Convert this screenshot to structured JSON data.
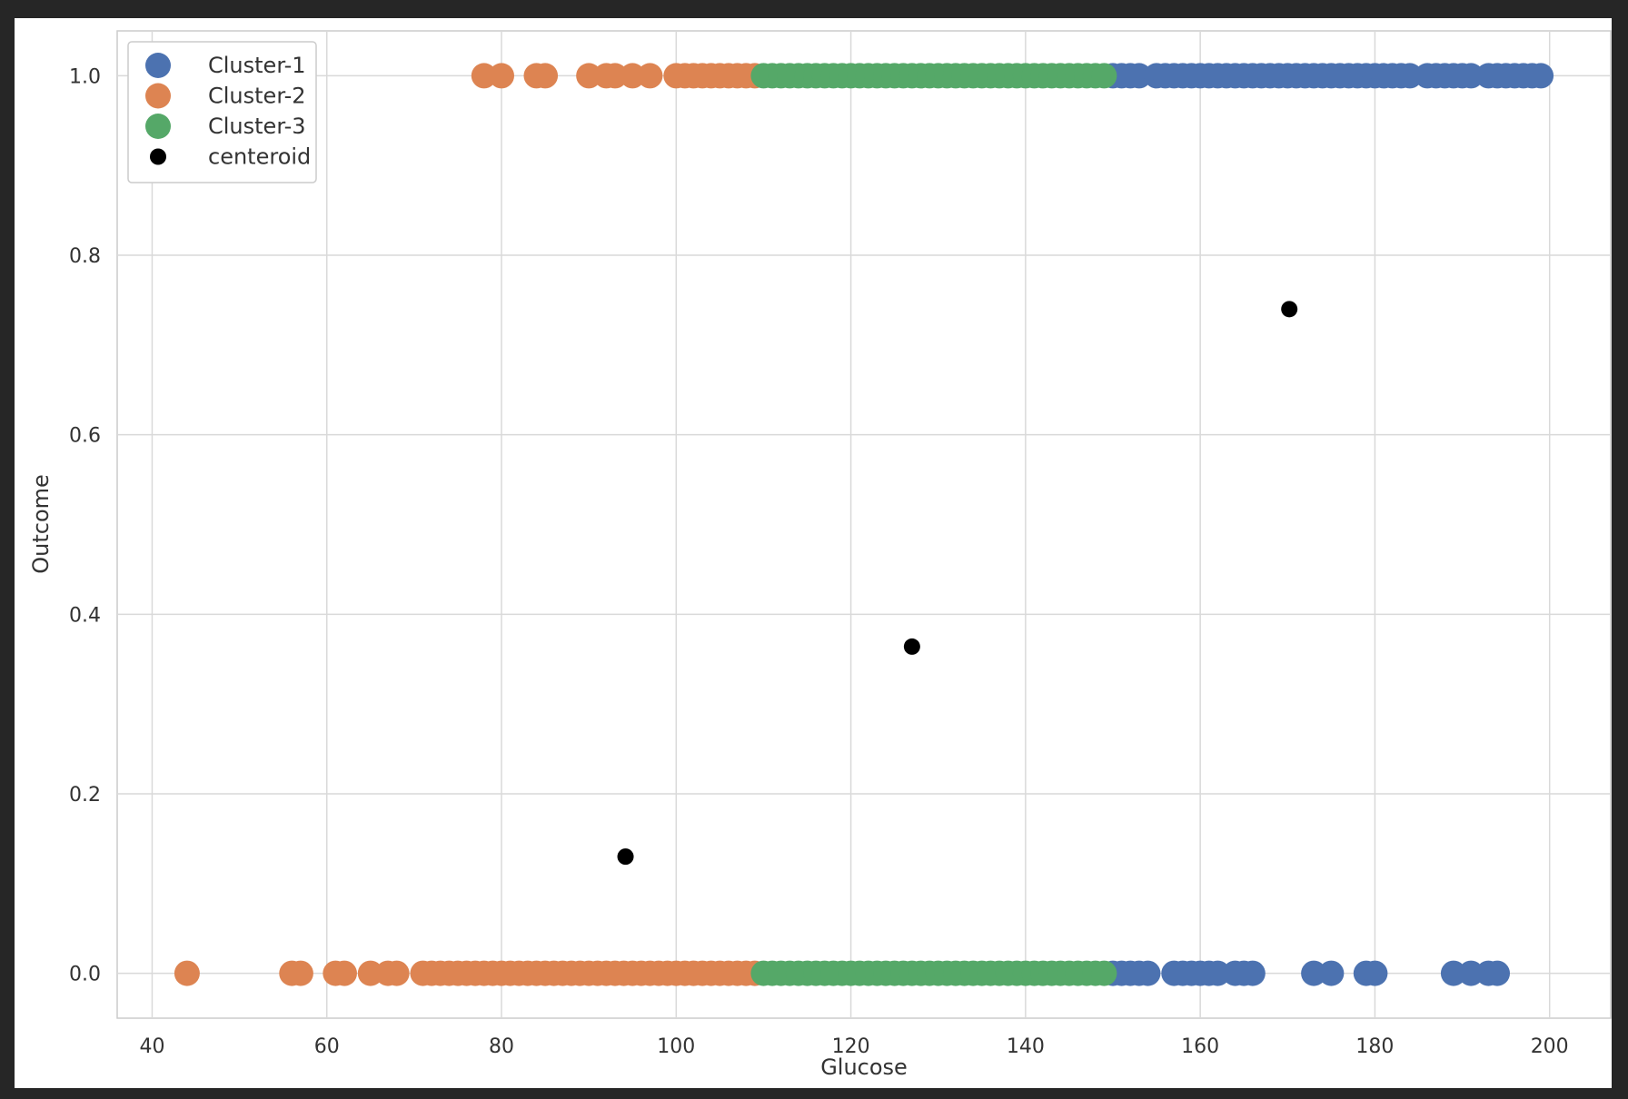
{
  "chart_data": {
    "type": "scatter",
    "title": "",
    "xlabel": "Glucose",
    "ylabel": "Outcome",
    "xlim": [
      36,
      207
    ],
    "ylim": [
      -0.05,
      1.05
    ],
    "xticks": [
      "40",
      "60",
      "80",
      "100",
      "120",
      "140",
      "160",
      "180",
      "200"
    ],
    "xtick_values": [
      40,
      60,
      80,
      100,
      120,
      140,
      160,
      180,
      200
    ],
    "yticks": [
      "0.0",
      "0.2",
      "0.4",
      "0.6",
      "0.8",
      "1.0"
    ],
    "ytick_values": [
      0.0,
      0.2,
      0.4,
      0.6,
      0.8,
      1.0
    ],
    "grid": true,
    "legend_position": "top-left",
    "series": [
      {
        "name": "Cluster-1",
        "color": "#4c72b0",
        "points": [
          [
            150,
            1
          ],
          [
            151,
            1
          ],
          [
            152,
            1
          ],
          [
            153,
            1
          ],
          [
            155,
            1
          ],
          [
            156,
            1
          ],
          [
            157,
            1
          ],
          [
            158,
            1
          ],
          [
            159,
            1
          ],
          [
            160,
            1
          ],
          [
            161,
            1
          ],
          [
            162,
            1
          ],
          [
            163,
            1
          ],
          [
            164,
            1
          ],
          [
            165,
            1
          ],
          [
            166,
            1
          ],
          [
            167,
            1
          ],
          [
            168,
            1
          ],
          [
            169,
            1
          ],
          [
            170,
            1
          ],
          [
            171,
            1
          ],
          [
            172,
            1
          ],
          [
            173,
            1
          ],
          [
            174,
            1
          ],
          [
            175,
            1
          ],
          [
            176,
            1
          ],
          [
            177,
            1
          ],
          [
            178,
            1
          ],
          [
            179,
            1
          ],
          [
            180,
            1
          ],
          [
            181,
            1
          ],
          [
            182,
            1
          ],
          [
            183,
            1
          ],
          [
            184,
            1
          ],
          [
            186,
            1
          ],
          [
            187,
            1
          ],
          [
            188,
            1
          ],
          [
            189,
            1
          ],
          [
            190,
            1
          ],
          [
            191,
            1
          ],
          [
            193,
            1
          ],
          [
            194,
            1
          ],
          [
            195,
            1
          ],
          [
            196,
            1
          ],
          [
            197,
            1
          ],
          [
            198,
            1
          ],
          [
            199,
            1
          ],
          [
            150,
            0
          ],
          [
            151,
            0
          ],
          [
            152,
            0
          ],
          [
            153,
            0
          ],
          [
            154,
            0
          ],
          [
            157,
            0
          ],
          [
            158,
            0
          ],
          [
            159,
            0
          ],
          [
            160,
            0
          ],
          [
            161,
            0
          ],
          [
            162,
            0
          ],
          [
            164,
            0
          ],
          [
            165,
            0
          ],
          [
            166,
            0
          ],
          [
            173,
            0
          ],
          [
            175,
            0
          ],
          [
            179,
            0
          ],
          [
            180,
            0
          ],
          [
            189,
            0
          ],
          [
            191,
            0
          ],
          [
            193,
            0
          ],
          [
            194,
            0
          ]
        ]
      },
      {
        "name": "Cluster-2",
        "color": "#dd8452",
        "points": [
          [
            78,
            1
          ],
          [
            80,
            1
          ],
          [
            84,
            1
          ],
          [
            85,
            1
          ],
          [
            90,
            1
          ],
          [
            92,
            1
          ],
          [
            93,
            1
          ],
          [
            95,
            1
          ],
          [
            97,
            1
          ],
          [
            100,
            1
          ],
          [
            101,
            1
          ],
          [
            102,
            1
          ],
          [
            103,
            1
          ],
          [
            104,
            1
          ],
          [
            105,
            1
          ],
          [
            106,
            1
          ],
          [
            107,
            1
          ],
          [
            108,
            1
          ],
          [
            109,
            1
          ],
          [
            44,
            0
          ],
          [
            56,
            0
          ],
          [
            57,
            0
          ],
          [
            61,
            0
          ],
          [
            62,
            0
          ],
          [
            65,
            0
          ],
          [
            67,
            0
          ],
          [
            68,
            0
          ],
          [
            71,
            0
          ],
          [
            72,
            0
          ],
          [
            73,
            0
          ],
          [
            74,
            0
          ],
          [
            75,
            0
          ],
          [
            76,
            0
          ],
          [
            77,
            0
          ],
          [
            78,
            0
          ],
          [
            79,
            0
          ],
          [
            80,
            0
          ],
          [
            81,
            0
          ],
          [
            82,
            0
          ],
          [
            83,
            0
          ],
          [
            84,
            0
          ],
          [
            85,
            0
          ],
          [
            86,
            0
          ],
          [
            87,
            0
          ],
          [
            88,
            0
          ],
          [
            89,
            0
          ],
          [
            90,
            0
          ],
          [
            91,
            0
          ],
          [
            92,
            0
          ],
          [
            93,
            0
          ],
          [
            94,
            0
          ],
          [
            95,
            0
          ],
          [
            96,
            0
          ],
          [
            97,
            0
          ],
          [
            98,
            0
          ],
          [
            99,
            0
          ],
          [
            100,
            0
          ],
          [
            101,
            0
          ],
          [
            102,
            0
          ],
          [
            103,
            0
          ],
          [
            104,
            0
          ],
          [
            105,
            0
          ],
          [
            106,
            0
          ],
          [
            107,
            0
          ],
          [
            108,
            0
          ],
          [
            109,
            0
          ]
        ]
      },
      {
        "name": "Cluster-3",
        "color": "#55a868",
        "points": [
          [
            110,
            1
          ],
          [
            111,
            1
          ],
          [
            112,
            1
          ],
          [
            113,
            1
          ],
          [
            114,
            1
          ],
          [
            115,
            1
          ],
          [
            116,
            1
          ],
          [
            117,
            1
          ],
          [
            118,
            1
          ],
          [
            119,
            1
          ],
          [
            120,
            1
          ],
          [
            121,
            1
          ],
          [
            122,
            1
          ],
          [
            123,
            1
          ],
          [
            124,
            1
          ],
          [
            125,
            1
          ],
          [
            126,
            1
          ],
          [
            127,
            1
          ],
          [
            128,
            1
          ],
          [
            129,
            1
          ],
          [
            130,
            1
          ],
          [
            131,
            1
          ],
          [
            132,
            1
          ],
          [
            133,
            1
          ],
          [
            134,
            1
          ],
          [
            135,
            1
          ],
          [
            136,
            1
          ],
          [
            137,
            1
          ],
          [
            138,
            1
          ],
          [
            139,
            1
          ],
          [
            140,
            1
          ],
          [
            141,
            1
          ],
          [
            142,
            1
          ],
          [
            143,
            1
          ],
          [
            144,
            1
          ],
          [
            145,
            1
          ],
          [
            146,
            1
          ],
          [
            147,
            1
          ],
          [
            148,
            1
          ],
          [
            149,
            1
          ],
          [
            110,
            0
          ],
          [
            111,
            0
          ],
          [
            112,
            0
          ],
          [
            113,
            0
          ],
          [
            114,
            0
          ],
          [
            115,
            0
          ],
          [
            116,
            0
          ],
          [
            117,
            0
          ],
          [
            118,
            0
          ],
          [
            119,
            0
          ],
          [
            120,
            0
          ],
          [
            121,
            0
          ],
          [
            122,
            0
          ],
          [
            123,
            0
          ],
          [
            124,
            0
          ],
          [
            125,
            0
          ],
          [
            126,
            0
          ],
          [
            127,
            0
          ],
          [
            128,
            0
          ],
          [
            129,
            0
          ],
          [
            130,
            0
          ],
          [
            131,
            0
          ],
          [
            132,
            0
          ],
          [
            133,
            0
          ],
          [
            134,
            0
          ],
          [
            135,
            0
          ],
          [
            136,
            0
          ],
          [
            137,
            0
          ],
          [
            138,
            0
          ],
          [
            139,
            0
          ],
          [
            140,
            0
          ],
          [
            141,
            0
          ],
          [
            142,
            0
          ],
          [
            143,
            0
          ],
          [
            144,
            0
          ],
          [
            145,
            0
          ],
          [
            146,
            0
          ],
          [
            147,
            0
          ],
          [
            148,
            0
          ],
          [
            149,
            0
          ]
        ]
      },
      {
        "name": "centeroid",
        "color": "#000000",
        "points": [
          [
            170.2,
            0.74
          ],
          [
            127.0,
            0.364
          ],
          [
            94.2,
            0.13
          ]
        ]
      }
    ]
  }
}
